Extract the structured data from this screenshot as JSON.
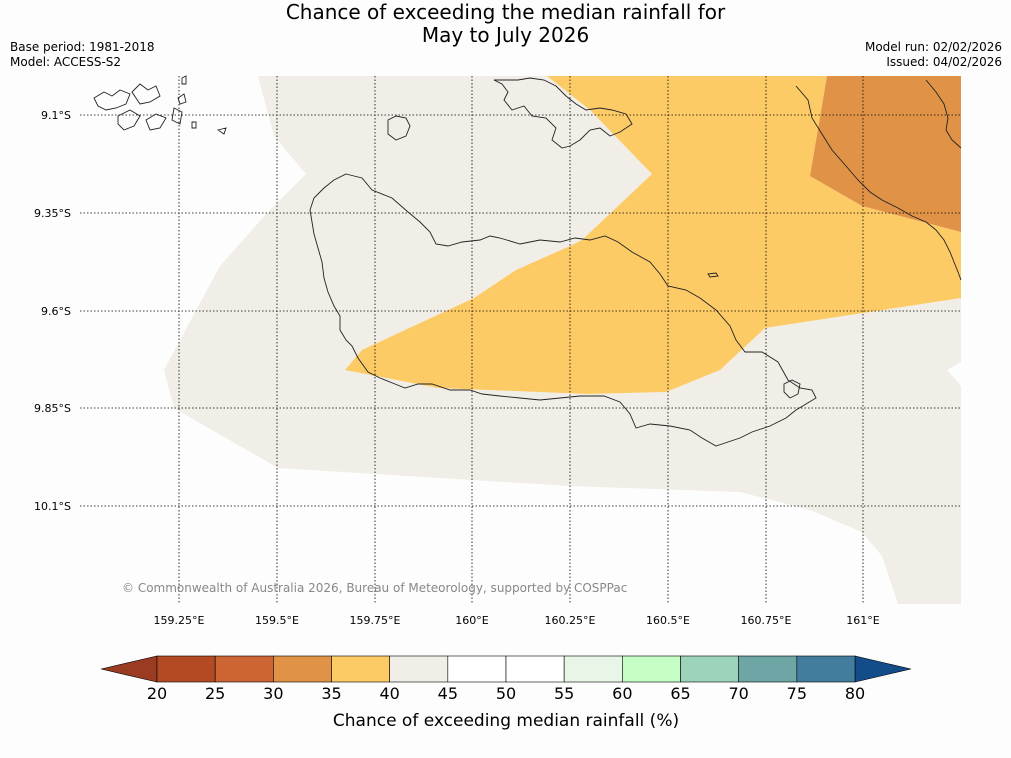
{
  "title_line1": "Chance of exceeding the median rainfall for",
  "title_line2": "May to July 2026",
  "base_period": "Base period: 1981-2018",
  "model": "Model: ACCESS-S2",
  "model_run": "Model run: 02/02/2026",
  "issued": "Issued: 04/02/2026",
  "copyright": "© Commonwealth of Australia 2026, Bureau of Meteorology, supported by COSPPac",
  "lat_labels": [
    "9.1°S",
    "9.35°S",
    "9.6°S",
    "9.85°S",
    "10.1°S"
  ],
  "lon_labels": [
    "159.25°E",
    "159.5°E",
    "159.75°E",
    "160°E",
    "160.25°E",
    "160.5°E",
    "160.75°E",
    "161°E"
  ],
  "colorbar": {
    "title": "Chance of exceeding median rainfall (%)",
    "ticks": [
      "20",
      "25",
      "30",
      "35",
      "40",
      "45",
      "50",
      "55",
      "60",
      "65",
      "70",
      "75",
      "80"
    ],
    "colors": [
      "#b34a24",
      "#cc6533",
      "#e09346",
      "#fdcb66",
      "#f1ede7",
      "#ffffff",
      "#ffffff",
      "#e8f6e8",
      "#c6ffc6",
      "#9dd3bb",
      "#6ea6a6",
      "#437d9e"
    ],
    "under_color": "#9a3b22",
    "over_color": "#124c89"
  },
  "map_colors": {
    "band_40_45": "#f1ede7",
    "band_35_40": "#fdcb66",
    "band_30_35": "#e09346"
  }
}
